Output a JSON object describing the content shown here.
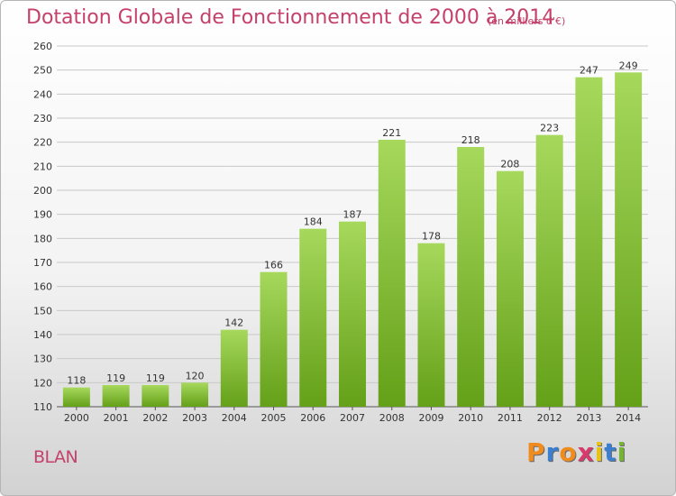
{
  "title": "Dotation Globale de Fonctionnement de 2000 à 2014",
  "unit_label": "(en milliers d'€)",
  "commune": "BLAN",
  "logo": {
    "text": "Proxiti",
    "letters": [
      "P",
      "r",
      "o",
      "x",
      "i",
      "t",
      "i"
    ],
    "colors": [
      "#f08c1e",
      "#3a7fd0",
      "#f08c1e",
      "#d83a6e",
      "#e8c317",
      "#3a7fd0",
      "#74b632"
    ]
  },
  "colors": {
    "bar_top": "#a6d85c",
    "bar_bottom": "#64a018",
    "title": "#c4416b",
    "grid": "#c8c8c8"
  },
  "chart_data": {
    "type": "bar",
    "title": "Dotation Globale de Fonctionnement de 2000 à 2014",
    "subtitle": "(en milliers d'€)",
    "xlabel": "",
    "ylabel": "",
    "categories": [
      "2000",
      "2001",
      "2002",
      "2003",
      "2004",
      "2005",
      "2006",
      "2007",
      "2008",
      "2009",
      "2010",
      "2011",
      "2012",
      "2013",
      "2014"
    ],
    "values": [
      118,
      119,
      119,
      120,
      142,
      166,
      184,
      187,
      221,
      178,
      218,
      208,
      223,
      247,
      249
    ],
    "ylim": [
      110,
      260
    ],
    "yticks": [
      110,
      120,
      130,
      140,
      150,
      160,
      170,
      180,
      190,
      200,
      210,
      220,
      230,
      240,
      250,
      260
    ],
    "grid": true,
    "legend": "none"
  }
}
